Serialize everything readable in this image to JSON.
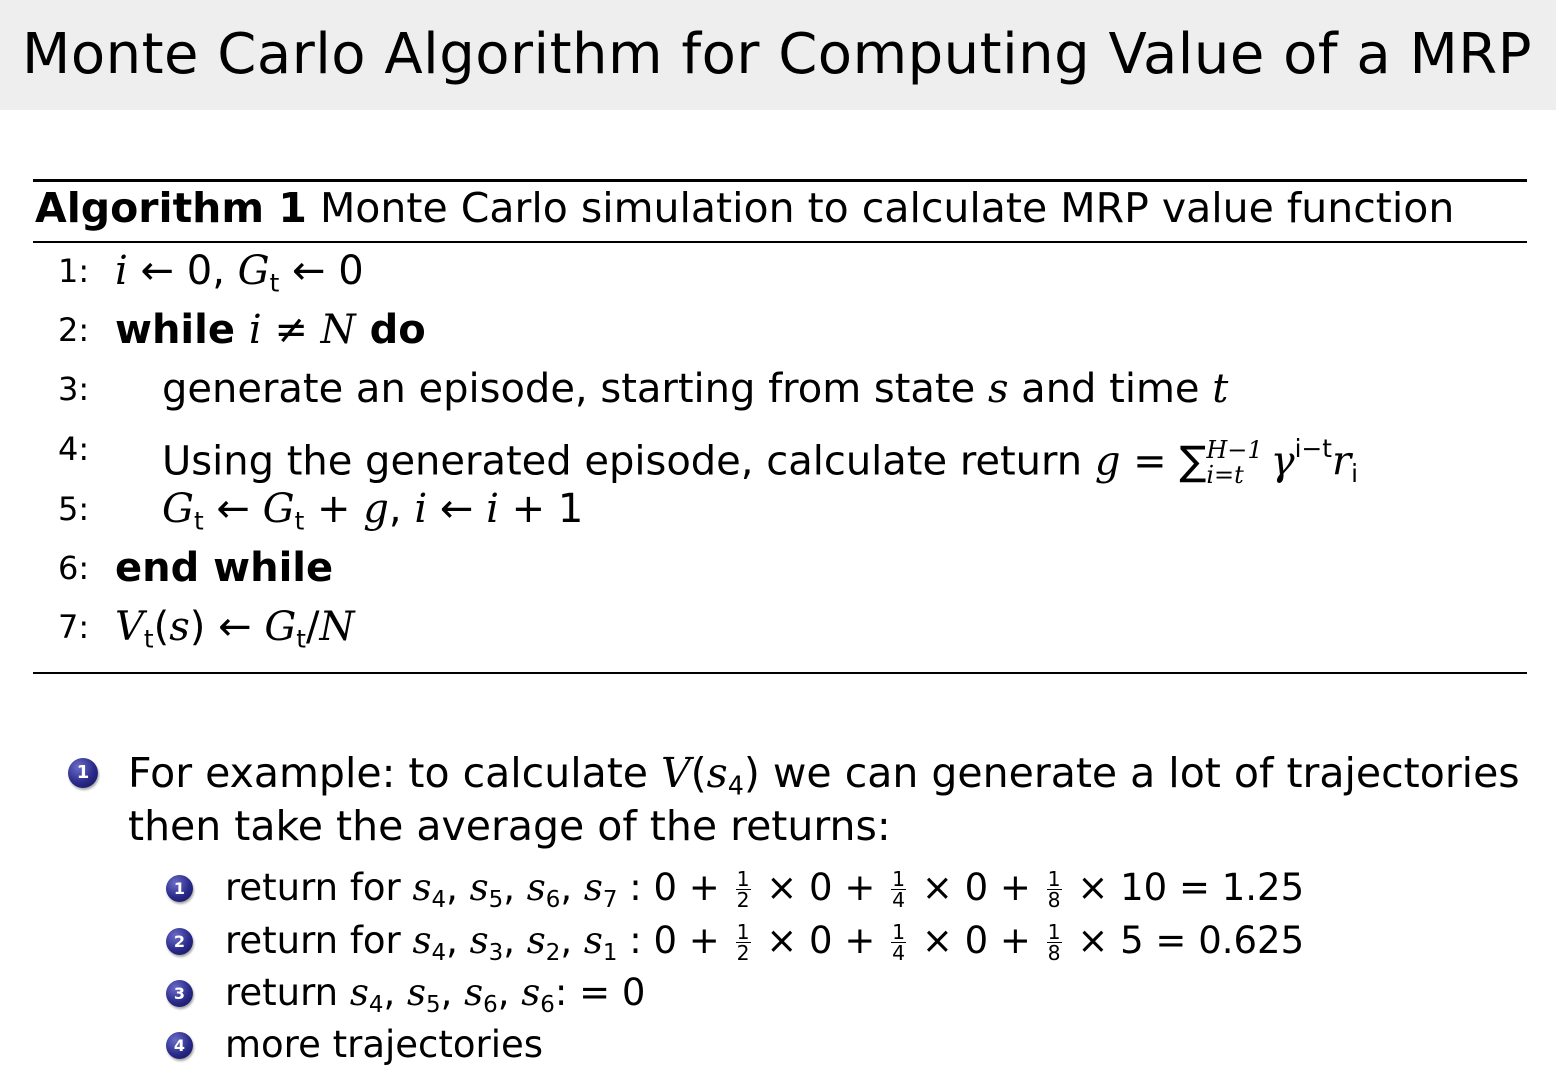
{
  "slide": {
    "title": "Monte Carlo Algorithm for Computing Value of a MRP"
  },
  "algorithm": {
    "label": "Algorithm 1",
    "caption": "Monte Carlo simulation to calculate MRP value function",
    "lines": [
      {
        "num": "1:",
        "indent": 0,
        "runs": [
          {
            "i": "i"
          },
          {
            "t": " ← 0, "
          },
          {
            "i": "G"
          },
          {
            "sub": "t"
          },
          {
            "t": " ← 0"
          }
        ]
      },
      {
        "num": "2:",
        "indent": 0,
        "runs": [
          {
            "b": "while "
          },
          {
            "i": "i"
          },
          {
            "t": " ≠ "
          },
          {
            "i": "N"
          },
          {
            "b": " do"
          }
        ]
      },
      {
        "num": "3:",
        "indent": 1,
        "runs": [
          {
            "t": "generate an episode, starting from state "
          },
          {
            "i": "s"
          },
          {
            "t": " and time "
          },
          {
            "i": "t"
          }
        ]
      },
      {
        "num": "4:",
        "indent": 1,
        "runs": [
          {
            "t": "Using the generated episode, calculate return "
          },
          {
            "i": "g"
          },
          {
            "t": " = ∑"
          },
          {
            "lim_top": "H−1",
            "lim_bot": "i=t"
          },
          {
            "i": "γ"
          },
          {
            "sup": "i−t"
          },
          {
            "i": "r"
          },
          {
            "sub": "i"
          }
        ]
      },
      {
        "num": "5:",
        "indent": 1,
        "runs": [
          {
            "i": "G"
          },
          {
            "sub": "t"
          },
          {
            "t": " ← "
          },
          {
            "i": "G"
          },
          {
            "sub": "t"
          },
          {
            "t": " + "
          },
          {
            "i": "g"
          },
          {
            "t": ", "
          },
          {
            "i": "i"
          },
          {
            "t": " ← "
          },
          {
            "i": "i"
          },
          {
            "t": " + 1"
          }
        ]
      },
      {
        "num": "6:",
        "indent": 0,
        "runs": [
          {
            "b": "end while"
          }
        ]
      },
      {
        "num": "7:",
        "indent": 0,
        "runs": [
          {
            "i": "V"
          },
          {
            "sub": "t"
          },
          {
            "t": "("
          },
          {
            "i": "s"
          },
          {
            "t": ") ← "
          },
          {
            "i": "G"
          },
          {
            "sub": "t"
          },
          {
            "t": "/"
          },
          {
            "i": "N"
          }
        ]
      }
    ]
  },
  "example": {
    "bullet": "1",
    "lines": [
      [
        {
          "t": "For example: to calculate "
        },
        {
          "i": "V"
        },
        {
          "t": "("
        },
        {
          "i": "s"
        },
        {
          "sub": "4"
        },
        {
          "t": ") we can generate a lot of trajectories"
        }
      ],
      [
        {
          "t": "then take the average of the returns:"
        }
      ]
    ],
    "subitems": [
      {
        "bullet": "1",
        "runs": [
          {
            "t": "return for "
          },
          {
            "i": "s"
          },
          {
            "sub": "4"
          },
          {
            "t": ", "
          },
          {
            "i": "s"
          },
          {
            "sub": "5"
          },
          {
            "t": ", "
          },
          {
            "i": "s"
          },
          {
            "sub": "6"
          },
          {
            "t": ", "
          },
          {
            "i": "s"
          },
          {
            "sub": "7"
          },
          {
            "t": " : 0 + "
          },
          {
            "n": "1",
            "d": "2"
          },
          {
            "t": " × 0 + "
          },
          {
            "n": "1",
            "d": "4"
          },
          {
            "t": " × 0 + "
          },
          {
            "n": "1",
            "d": "8"
          },
          {
            "t": " × 10 = 1.25"
          }
        ]
      },
      {
        "bullet": "2",
        "runs": [
          {
            "t": "return for "
          },
          {
            "i": "s"
          },
          {
            "sub": "4"
          },
          {
            "t": ", "
          },
          {
            "i": "s"
          },
          {
            "sub": "3"
          },
          {
            "t": ", "
          },
          {
            "i": "s"
          },
          {
            "sub": "2"
          },
          {
            "t": ", "
          },
          {
            "i": "s"
          },
          {
            "sub": "1"
          },
          {
            "t": " : 0 + "
          },
          {
            "n": "1",
            "d": "2"
          },
          {
            "t": " × 0 + "
          },
          {
            "n": "1",
            "d": "4"
          },
          {
            "t": " × 0 + "
          },
          {
            "n": "1",
            "d": "8"
          },
          {
            "t": " × 5 = 0.625"
          }
        ]
      },
      {
        "bullet": "3",
        "runs": [
          {
            "t": "return "
          },
          {
            "i": "s"
          },
          {
            "sub": "4"
          },
          {
            "t": ", "
          },
          {
            "i": "s"
          },
          {
            "sub": "5"
          },
          {
            "t": ", "
          },
          {
            "i": "s"
          },
          {
            "sub": "6"
          },
          {
            "t": ", "
          },
          {
            "i": "s"
          },
          {
            "sub": "6"
          },
          {
            "t": ": = 0"
          }
        ]
      },
      {
        "bullet": "4",
        "runs": [
          {
            "t": "more trajectories"
          }
        ]
      }
    ]
  },
  "colors": {
    "title_bar": "#eeeeee",
    "bullet": "#2a2a8a"
  }
}
